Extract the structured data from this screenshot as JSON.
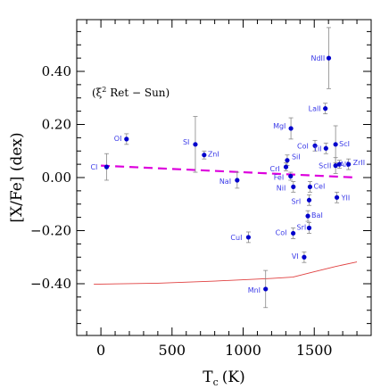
{
  "chart_data": {
    "type": "scatter",
    "xlabel_main": "T",
    "xlabel_sub": "c",
    "xlabel_unit": "(K)",
    "ylabel": "[X/Fe] (dex)",
    "annotation": {
      "prefix": "(ξ",
      "sup": "2",
      "suffix": " Ret − Sun)"
    },
    "xlim": [
      -170,
      1900
    ],
    "ylim": [
      -0.595,
      0.595
    ],
    "xticks": [
      0,
      500,
      1000,
      1500
    ],
    "xtick_labels": [
      "0",
      "500",
      "1000",
      "1500"
    ],
    "xminor": [
      -100,
      100,
      200,
      300,
      400,
      600,
      700,
      800,
      900,
      1100,
      1200,
      1300,
      1400,
      1600,
      1700,
      1800
    ],
    "yticks": [
      -0.4,
      -0.2,
      0.0,
      0.2,
      0.4
    ],
    "ytick_labels": [
      "−0.40",
      "−0.20",
      "0.00",
      "0.20",
      "0.40"
    ],
    "yminor": [
      -0.55,
      -0.5,
      -0.45,
      -0.35,
      -0.3,
      -0.25,
      -0.15,
      -0.1,
      -0.05,
      0.05,
      0.1,
      0.15,
      0.25,
      0.3,
      0.35,
      0.45,
      0.5,
      0.55
    ],
    "colors": {
      "points": "#0000cc",
      "labels": "#3a3ae8",
      "fit": "#dd00dd",
      "lower_curve": "#e04040",
      "errbar": "#888888"
    },
    "points": [
      {
        "label": "CI",
        "x": 40,
        "y": 0.04,
        "err": 0.05,
        "lx": -18,
        "ly": 3
      },
      {
        "label": "OI",
        "x": 180,
        "y": 0.145,
        "err": 0.02,
        "lx": -14,
        "ly": 2
      },
      {
        "label": "SI",
        "x": 664,
        "y": 0.125,
        "err": 0.105,
        "lx": -14,
        "ly": 0
      },
      {
        "label": "ZnI",
        "x": 726,
        "y": 0.085,
        "err": 0.015,
        "lx": 4,
        "ly": 2
      },
      {
        "label": "NaI",
        "x": 958,
        "y": -0.01,
        "err": 0.03,
        "lx": -20,
        "ly": 4
      },
      {
        "label": "CuI",
        "x": 1037,
        "y": -0.225,
        "err": 0.02,
        "lx": -20,
        "ly": 3
      },
      {
        "label": "MnI",
        "x": 1158,
        "y": -0.42,
        "err": 0.07,
        "lx": -20,
        "ly": 4
      },
      {
        "label": "MgI",
        "x": 1336,
        "y": 0.185,
        "err": 0.04,
        "lx": -20,
        "ly": 0
      },
      {
        "label": "SiI",
        "x": 1310,
        "y": 0.065,
        "err": 0.02,
        "lx": 5,
        "ly": -1
      },
      {
        "label": "CrI",
        "x": 1301,
        "y": 0.04,
        "err": 0.015,
        "lx": -18,
        "ly": 5
      },
      {
        "label": "FeI",
        "x": 1334,
        "y": 0.005,
        "err": 0.015,
        "lx": -19,
        "ly": 4
      },
      {
        "label": "NiI",
        "x": 1353,
        "y": -0.035,
        "err": 0.02,
        "lx": -19,
        "ly": 4
      },
      {
        "label": "CeI",
        "x": 1470,
        "y": -0.035,
        "err": 0.02,
        "lx": 4,
        "ly": 2
      },
      {
        "label": "SrI",
        "x": 1464,
        "y": -0.085,
        "err": 0.02,
        "lx": -20,
        "ly": 4
      },
      {
        "label": "BaI",
        "x": 1455,
        "y": -0.145,
        "err": 0.02,
        "lx": 4,
        "ly": 2
      },
      {
        "label": "SrI",
        "x": 1464,
        "y": -0.19,
        "err": 0.02,
        "lx": -14,
        "ly": 2
      },
      {
        "label": "CoI",
        "x": 1352,
        "y": -0.21,
        "err": 0.02,
        "lx": -20,
        "ly": 2
      },
      {
        "label": "VI",
        "x": 1429,
        "y": -0.3,
        "err": 0.02,
        "lx": -14,
        "ly": 2
      },
      {
        "label": "CoI",
        "x": 1505,
        "y": 0.12,
        "err": 0.02,
        "lx": -20,
        "ly": 3
      },
      {
        "label": "TiI",
        "x": 1582,
        "y": 0.11,
        "err": 0.02,
        "lx": -14,
        "ly": 3
      },
      {
        "label": "ScI",
        "x": 1650,
        "y": 0.125,
        "err": 0.07,
        "lx": 4,
        "ly": 2
      },
      {
        "label": "ScII",
        "x": 1650,
        "y": 0.045,
        "err": 0.03,
        "lx": -19,
        "ly": 3
      },
      {
        "label": "AlI",
        "x": 1677,
        "y": 0.05,
        "err": 0.015,
        "lx": 0,
        "ly": 3
      },
      {
        "label": "ZrII",
        "x": 1741,
        "y": 0.05,
        "err": 0.02,
        "lx": 5,
        "ly": 1
      },
      {
        "label": "YII",
        "x": 1659,
        "y": -0.075,
        "err": 0.02,
        "lx": 5,
        "ly": 3
      },
      {
        "label": "LaII",
        "x": 1578,
        "y": 0.26,
        "err": 0.02,
        "lx": -19,
        "ly": 3
      },
      {
        "label": "NdII",
        "x": 1602,
        "y": 0.45,
        "err": 0.115,
        "lx": -20,
        "ly": 3
      }
    ],
    "fit_line": {
      "x": [
        0,
        1800
      ],
      "y": [
        0.045,
        0.0
      ]
    },
    "lower_curve": {
      "x": [
        -50,
        400,
        800,
        1200,
        1350,
        1500,
        1650,
        1800
      ],
      "y": [
        -0.402,
        -0.398,
        -0.39,
        -0.38,
        -0.375,
        -0.355,
        -0.335,
        -0.318
      ]
    }
  }
}
